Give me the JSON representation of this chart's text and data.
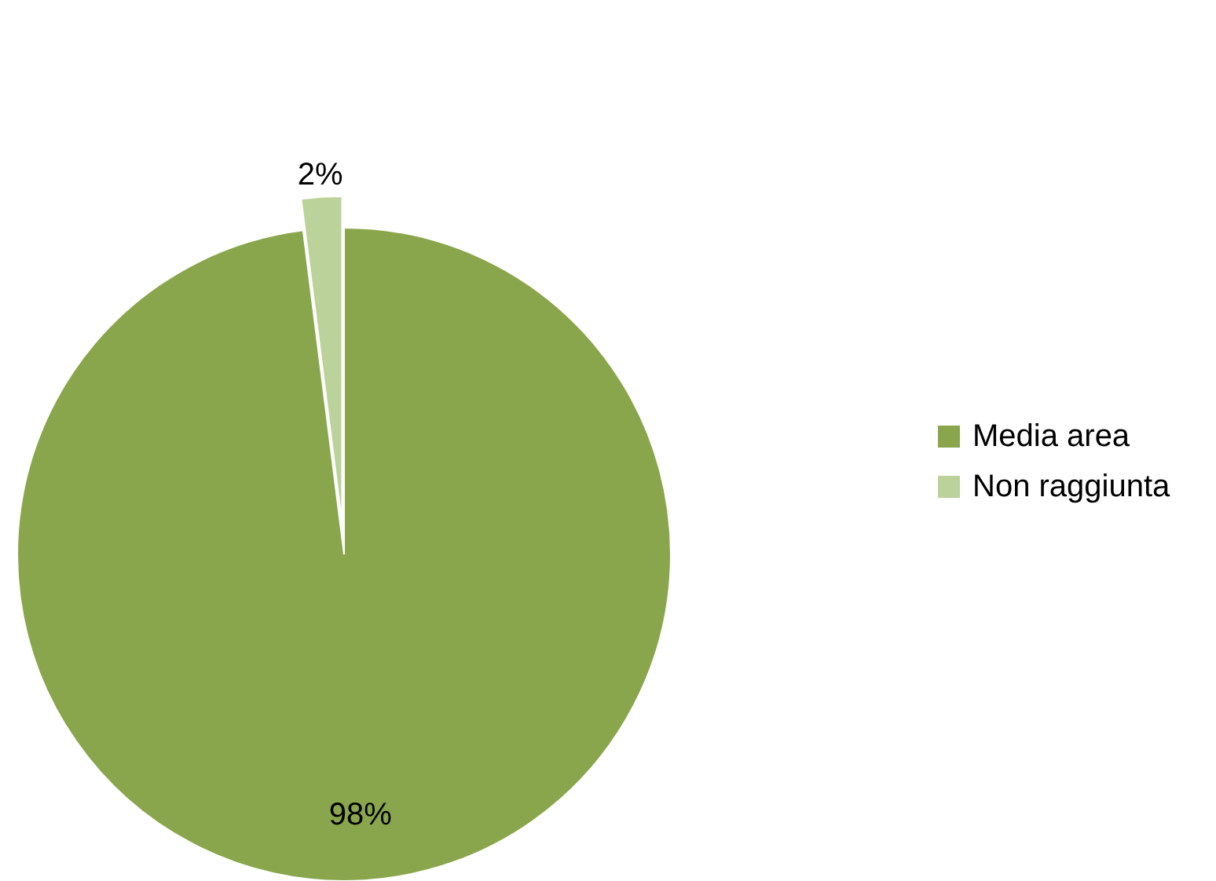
{
  "chart_data": {
    "type": "pie",
    "categories": [
      "Media area",
      "Non raggiunta"
    ],
    "values": [
      98,
      2
    ],
    "colors": [
      "#8aa64c",
      "#bbd29a"
    ],
    "value_labels": [
      "98%",
      "2%"
    ],
    "legend": "right"
  }
}
